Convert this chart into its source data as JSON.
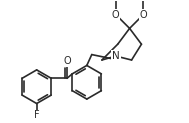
{
  "bg_color": "#ffffff",
  "line_color": "#2a2a2a",
  "line_width": 1.2,
  "font_size": 7.0,
  "label_F": "F",
  "label_O1": "O",
  "label_O2": "O",
  "label_N": "N",
  "label_Oketone": "O",
  "figw": 1.89,
  "figh": 1.23,
  "dpi": 100
}
